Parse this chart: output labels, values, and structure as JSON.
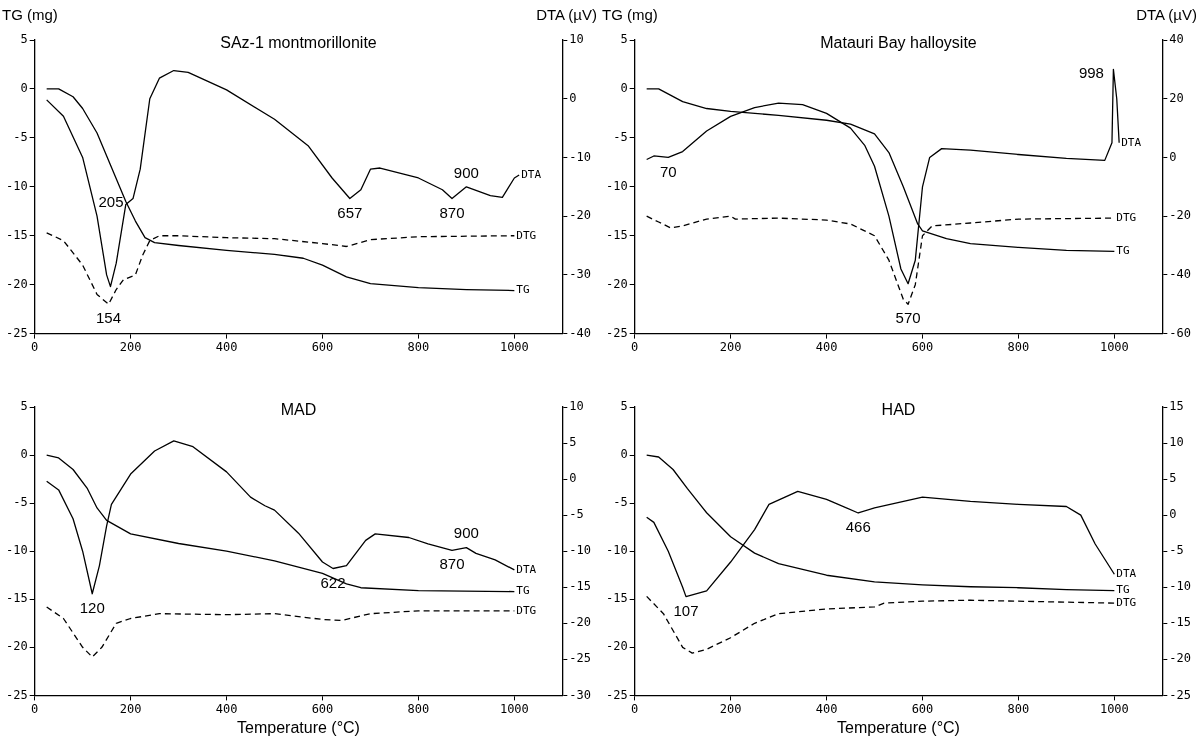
{
  "chart_data": [
    {
      "type": "line",
      "title": "SAz-1 montmorillonite",
      "ylabel": "TG (mg)",
      "y2label": "DTA (µV)",
      "marker": "none",
      "xlim": [
        0,
        1100
      ],
      "xticks": [
        0,
        200,
        400,
        600,
        800,
        1000
      ],
      "ylim": [
        -25,
        5
      ],
      "yticks": [
        -25,
        -20,
        -15,
        -10,
        -5,
        0,
        5
      ],
      "y2lim": [
        -40,
        10
      ],
      "y2ticks": [
        -40,
        -30,
        -20,
        -10,
        0,
        10
      ],
      "annotations": [
        {
          "text": "154",
          "x": 154,
          "y": -22
        },
        {
          "text": "205",
          "x": 205,
          "y": -11.2
        },
        {
          "text": "657",
          "x": 657,
          "y": -11.2
        },
        {
          "text": "870",
          "x": 870,
          "y": -11.2
        },
        {
          "text": "900",
          "x": 900,
          "y": -10
        }
      ],
      "series": [
        {
          "name": "DTA",
          "color": "#000000",
          "axis": "y2",
          "x": [
            25,
            60,
            100,
            130,
            150,
            158,
            170,
            190,
            205,
            220,
            240,
            260,
            290,
            320,
            400,
            500,
            570,
            620,
            657,
            680,
            700,
            720,
            800,
            850,
            870,
            900,
            950,
            975,
            1000,
            1010
          ],
          "values": [
            -0.2,
            -3,
            -10,
            -20,
            -30,
            -32,
            -28,
            -18,
            -17,
            -12,
            0,
            3.5,
            4.8,
            4.5,
            1.5,
            -3.5,
            -8,
            -13.5,
            -17,
            -15.5,
            -12,
            -11.8,
            -13.5,
            -15.5,
            -17,
            -15,
            -16.5,
            -16.8,
            -13.5,
            -13
          ]
        },
        {
          "name": "TG",
          "color": "#000000",
          "x": [
            25,
            50,
            80,
            100,
            130,
            160,
            190,
            210,
            230,
            250,
            300,
            400,
            500,
            560,
            600,
            650,
            700,
            800,
            900,
            1000
          ],
          "values": [
            0,
            0,
            -0.8,
            -2,
            -4.5,
            -8,
            -11.5,
            -13.5,
            -15.2,
            -15.7,
            -16,
            -16.5,
            -16.9,
            -17.3,
            -18,
            -19.2,
            -19.9,
            -20.3,
            -20.5,
            -20.6
          ]
        },
        {
          "name": "DTG",
          "color": "#000000",
          "line_style": "dashed",
          "x": [
            25,
            60,
            100,
            130,
            154,
            170,
            185,
            210,
            225,
            240,
            260,
            300,
            400,
            500,
            600,
            650,
            700,
            800,
            1000
          ],
          "values": [
            -14.7,
            -15.5,
            -18,
            -21,
            -22,
            -20.5,
            -19.5,
            -19,
            -17,
            -15.5,
            -15,
            -15,
            -15.2,
            -15.3,
            -15.8,
            -16.1,
            -15.4,
            -15.1,
            -15
          ]
        }
      ]
    },
    {
      "type": "line",
      "title": "Matauri Bay halloysite",
      "ylabel": "TG (mg)",
      "y2label": "DTA (µV)",
      "marker": "none",
      "xlim": [
        0,
        1100
      ],
      "xticks": [
        0,
        200,
        400,
        600,
        800,
        1000
      ],
      "ylim": [
        -25,
        5
      ],
      "yticks": [
        -25,
        -20,
        -15,
        -10,
        -5,
        0,
        5
      ],
      "y2lim": [
        -60,
        40
      ],
      "y2ticks": [
        -60,
        -40,
        -20,
        0,
        20,
        40
      ],
      "annotations": [
        {
          "text": "70",
          "x": 70,
          "y": -7
        },
        {
          "text": "570",
          "x": 570,
          "y": -22
        },
        {
          "text": "998",
          "x": 998,
          "y": 2
        }
      ],
      "series": [
        {
          "name": "DTA",
          "color": "#000000",
          "axis": "y2",
          "x": [
            25,
            40,
            70,
            100,
            150,
            200,
            250,
            300,
            350,
            400,
            450,
            480,
            500,
            530,
            555,
            570,
            585,
            600,
            615,
            640,
            700,
            800,
            900,
            980,
            995,
            998,
            1005,
            1010
          ],
          "values": [
            -0.7,
            0.5,
            0,
            2,
            9,
            14,
            17,
            18.5,
            18,
            15,
            10,
            4,
            -3,
            -20,
            -38,
            -43,
            -35,
            -10,
            0,
            3,
            2.5,
            1,
            -0.3,
            -1,
            5,
            30,
            20,
            5
          ]
        },
        {
          "name": "TG",
          "color": "#000000",
          "x": [
            25,
            50,
            100,
            150,
            200,
            300,
            400,
            450,
            500,
            530,
            560,
            590,
            600,
            650,
            700,
            800,
            900,
            1000
          ],
          "values": [
            0,
            0,
            -1.3,
            -2,
            -2.3,
            -2.7,
            -3.2,
            -3.6,
            -4.6,
            -6.5,
            -10,
            -13.8,
            -14.5,
            -15.3,
            -15.8,
            -16.2,
            -16.5,
            -16.6
          ]
        },
        {
          "name": "DTG",
          "color": "#000000",
          "line_style": "dashed",
          "x": [
            25,
            50,
            75,
            100,
            150,
            200,
            210,
            300,
            400,
            450,
            500,
            530,
            560,
            570,
            585,
            600,
            620,
            700,
            800,
            1000
          ],
          "values": [
            -13,
            -13.6,
            -14.2,
            -14,
            -13.3,
            -13,
            -13.3,
            -13.2,
            -13.4,
            -13.8,
            -15,
            -17.5,
            -21.5,
            -22,
            -20,
            -15,
            -14,
            -13.7,
            -13.3,
            -13.2
          ]
        }
      ]
    },
    {
      "type": "line",
      "title": "MAD",
      "xlabel": "Temperature (°C)",
      "marker": "none",
      "xlim": [
        0,
        1100
      ],
      "xticks": [
        0,
        200,
        400,
        600,
        800,
        1000
      ],
      "ylim": [
        -25,
        5
      ],
      "yticks": [
        -25,
        -20,
        -15,
        -10,
        -5,
        0,
        5
      ],
      "y2lim": [
        -30,
        10
      ],
      "y2ticks": [
        -30,
        -25,
        -20,
        -15,
        -10,
        -5,
        0,
        5,
        10
      ],
      "annotations": [
        {
          "text": "120",
          "x": 120,
          "y": -14.4
        },
        {
          "text": "622",
          "x": 622,
          "y": -11.8
        },
        {
          "text": "870",
          "x": 870,
          "y": -9.9
        },
        {
          "text": "900",
          "x": 900,
          "y": -9.6
        }
      ],
      "series": [
        {
          "name": "DTA",
          "color": "#000000",
          "axis": "y2",
          "x": [
            25,
            50,
            80,
            100,
            120,
            135,
            150,
            160,
            200,
            250,
            290,
            330,
            400,
            450,
            480,
            500,
            550,
            600,
            622,
            650,
            690,
            710,
            780,
            820,
            870,
            900,
            920,
            960,
            1000
          ],
          "values": [
            -0.3,
            -1.5,
            -5.5,
            -10,
            -15.9,
            -12,
            -6.5,
            -3.5,
            0.7,
            3.9,
            5.3,
            4.5,
            1,
            -2.5,
            -3.7,
            -4.3,
            -7.5,
            -11.5,
            -12.4,
            -12,
            -8.5,
            -7.6,
            -8.1,
            -9,
            -9.9,
            -9.5,
            -10.3,
            -11.2,
            -12.6
          ]
        },
        {
          "name": "TG",
          "color": "#000000",
          "x": [
            25,
            50,
            80,
            110,
            130,
            150,
            200,
            300,
            400,
            500,
            600,
            650,
            680,
            800,
            1000
          ],
          "values": [
            0,
            -0.3,
            -1.5,
            -3.5,
            -5.5,
            -6.8,
            -8.2,
            -9.2,
            -10,
            -11,
            -12.3,
            -13.4,
            -13.8,
            -14.1,
            -14.2
          ]
        },
        {
          "name": "DTG",
          "color": "#000000",
          "line_style": "dashed",
          "x": [
            25,
            60,
            100,
            120,
            140,
            170,
            200,
            260,
            400,
            500,
            600,
            640,
            700,
            800,
            1000
          ],
          "values": [
            -15.8,
            -17,
            -20,
            -21,
            -20,
            -17.5,
            -17,
            -16.5,
            -16.6,
            -16.5,
            -17.1,
            -17.2,
            -16.5,
            -16.2,
            -16.2
          ]
        }
      ]
    },
    {
      "type": "line",
      "title": "HAD",
      "xlabel": "Temperature (°C)",
      "marker": "none",
      "xlim": [
        0,
        1100
      ],
      "xticks": [
        0,
        200,
        400,
        600,
        800,
        1000
      ],
      "ylim": [
        -25,
        5
      ],
      "yticks": [
        -25,
        -20,
        -15,
        -10,
        -5,
        0,
        5
      ],
      "y2lim": [
        -25,
        15
      ],
      "y2ticks": [
        -25,
        -20,
        -15,
        -10,
        -5,
        0,
        5,
        10,
        15
      ],
      "annotations": [
        {
          "text": "107",
          "x": 107,
          "y": -14.7
        },
        {
          "text": "466",
          "x": 466,
          "y": -6
        }
      ],
      "series": [
        {
          "name": "DTA",
          "color": "#000000",
          "axis": "y2",
          "x": [
            25,
            40,
            70,
            100,
            107,
            150,
            200,
            250,
            280,
            340,
            400,
            466,
            500,
            600,
            700,
            800,
            900,
            930,
            960,
            1000
          ],
          "values": [
            -0.3,
            -1,
            -5,
            -10,
            -11.3,
            -10.5,
            -6.5,
            -2,
            1.5,
            3.3,
            2.2,
            0.3,
            1,
            2.5,
            1.9,
            1.5,
            1.2,
            0,
            -4,
            -8.2
          ]
        },
        {
          "name": "TG",
          "color": "#000000",
          "x": [
            25,
            50,
            80,
            110,
            150,
            200,
            250,
            300,
            400,
            500,
            600,
            700,
            800,
            900,
            1000
          ],
          "values": [
            0,
            -0.2,
            -1.5,
            -3.5,
            -6,
            -8.5,
            -10.2,
            -11.3,
            -12.5,
            -13.2,
            -13.5,
            -13.7,
            -13.8,
            -14,
            -14.1
          ]
        },
        {
          "name": "DTG",
          "color": "#000000",
          "line_style": "dashed",
          "x": [
            25,
            60,
            100,
            120,
            150,
            200,
            250,
            300,
            400,
            500,
            520,
            600,
            700,
            800,
            900,
            1000
          ],
          "values": [
            -14.7,
            -16.5,
            -20,
            -20.6,
            -20.2,
            -19,
            -17.5,
            -16.5,
            -16,
            -15.8,
            -15.4,
            -15.2,
            -15.1,
            -15.2,
            -15.3,
            -15.4
          ]
        }
      ]
    }
  ]
}
